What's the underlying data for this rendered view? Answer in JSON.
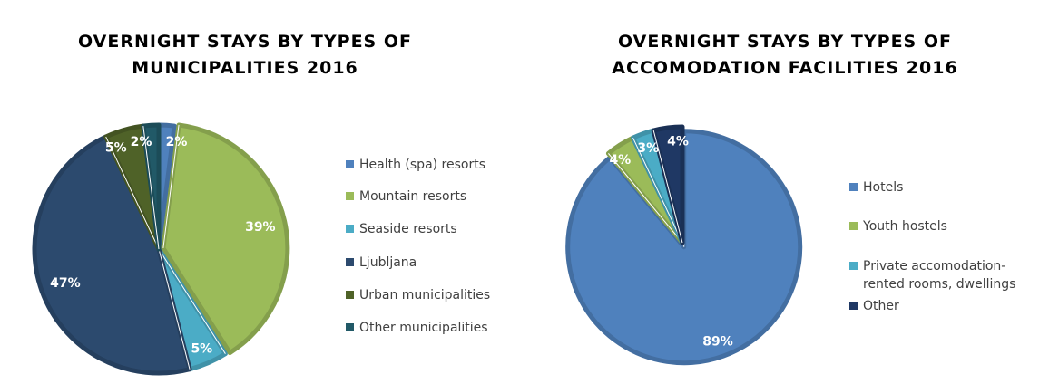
{
  "chart_data": [
    {
      "type": "pie",
      "title": "OVERNIGHT STAYS BY TYPES OF MUNICIPALITIES 2016",
      "title_lines": [
        "OVERNIGHT STAYS BY TYPES OF",
        "MUNICIPALITIES 2016"
      ],
      "legend_position": "right",
      "slices": [
        {
          "name": "Health (spa) resorts",
          "value": 2,
          "label": "2%",
          "color": "#4f81bd"
        },
        {
          "name": "Mountain resorts",
          "value": 39,
          "label": "39%",
          "color": "#9bbb59",
          "exploded": true
        },
        {
          "name": "Seaside resorts",
          "value": 5,
          "label": "5%",
          "color": "#4bacc6"
        },
        {
          "name": "Ljubljana",
          "value": 47,
          "label": "47%",
          "color": "#2c4a6e"
        },
        {
          "name": "Urban municipalities",
          "value": 5,
          "label": "5%",
          "color": "#4f6228"
        },
        {
          "name": "Other municipalities",
          "value": 2,
          "label": "2%",
          "color": "#215967"
        }
      ]
    },
    {
      "type": "pie",
      "title": "OVERNIGHT STAYS BY TYPES OF ACCOMODATION FACILITIES 2016",
      "title_lines": [
        "OVERNIGHT STAYS BY TYPES OF",
        "ACCOMODATION FACILITIES 2016"
      ],
      "legend_position": "right",
      "slices": [
        {
          "name": "Hotels",
          "value": 89,
          "label": "89%",
          "color": "#4f81bd",
          "exploded": true
        },
        {
          "name": "Youth hostels",
          "value": 4,
          "label": "4%",
          "color": "#9bbb59"
        },
        {
          "name": "Private accomodation-rented rooms, dwellings",
          "value": 3,
          "label": "3%",
          "color": "#4bacc6",
          "legend_lines": [
            "Private accomodation-",
            "rented rooms, dwellings"
          ]
        },
        {
          "name": "Other",
          "value": 4,
          "label": "4%",
          "color": "#1f3864"
        }
      ]
    }
  ]
}
